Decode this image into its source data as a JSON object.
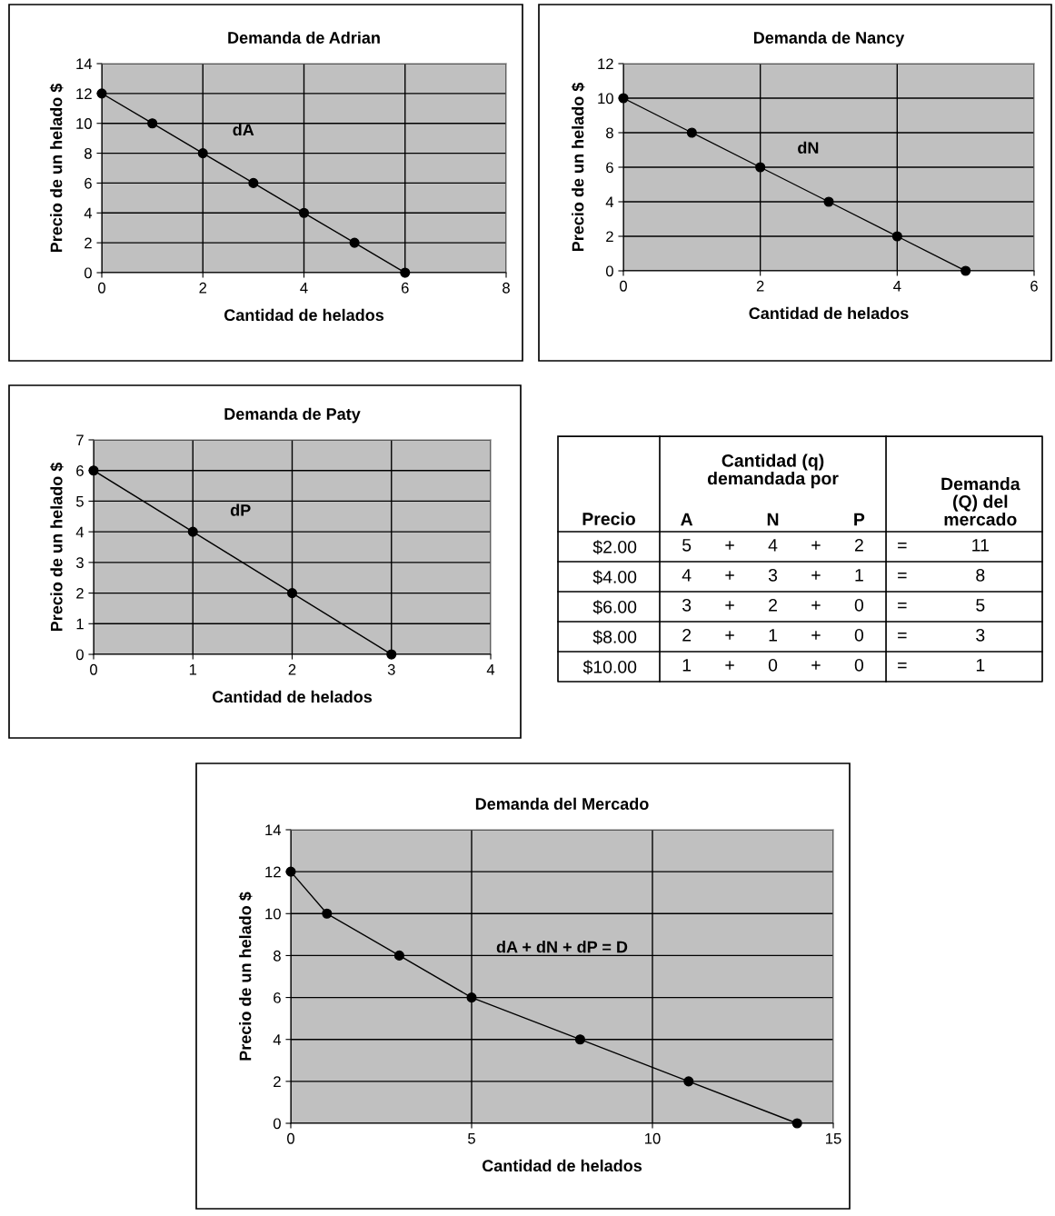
{
  "chart_data": [
    {
      "type": "line",
      "title": "Demanda de Adrian",
      "xlabel": "Cantidad de helados",
      "ylabel": "Precio de un helado $",
      "x": [
        0,
        1,
        2,
        3,
        4,
        5,
        6
      ],
      "series": [
        {
          "color": "#000000",
          "values": [
            12,
            10,
            8,
            6,
            4,
            2,
            0
          ]
        }
      ],
      "xlim": [
        0,
        8
      ],
      "ylim": [
        0,
        14
      ],
      "xticks": [
        0,
        2,
        4,
        6,
        8
      ],
      "yticks": [
        0,
        2,
        4,
        6,
        8,
        10,
        12,
        14
      ],
      "grid": true,
      "marker": "circle",
      "line_style": "solid",
      "annotations": [
        "dA"
      ]
    },
    {
      "type": "line",
      "title": "Demanda de Nancy",
      "xlabel": "Cantidad de helados",
      "ylabel": "Precio de un helado $",
      "x": [
        0,
        1,
        2,
        3,
        4,
        5
      ],
      "series": [
        {
          "color": "#000000",
          "values": [
            10,
            8,
            6,
            4,
            2,
            0
          ]
        }
      ],
      "xlim": [
        0,
        6
      ],
      "ylim": [
        0,
        12
      ],
      "xticks": [
        0,
        2,
        4,
        6
      ],
      "yticks": [
        0,
        2,
        4,
        6,
        8,
        10,
        12
      ],
      "grid": true,
      "marker": "circle",
      "line_style": "solid",
      "annotations": [
        "dN"
      ]
    },
    {
      "type": "line",
      "title": "Demanda de Paty",
      "xlabel": "Cantidad de helados",
      "ylabel": "Precio de un helado $",
      "x": [
        0,
        1,
        2,
        3
      ],
      "series": [
        {
          "color": "#000000",
          "values": [
            6,
            4,
            2,
            0
          ]
        }
      ],
      "xlim": [
        0,
        4
      ],
      "ylim": [
        0,
        7
      ],
      "xticks": [
        0,
        1,
        2,
        3,
        4
      ],
      "yticks": [
        0,
        1,
        2,
        3,
        4,
        5,
        6,
        7
      ],
      "grid": true,
      "marker": "circle",
      "line_style": "solid",
      "annotations": [
        "dP"
      ]
    },
    {
      "type": "heatmap",
      "ylabel": "Precio",
      "categories": [
        "A",
        null,
        "N",
        null,
        "P",
        null,
        "Demanda\n(Q) del\nmercado"
      ],
      "y_categories": [
        "$2.00",
        "$4.00",
        "$6.00",
        "$8.00",
        "$10.00"
      ],
      "color": "#ffffff",
      "data_labels": true,
      "cells": [
        [
          5,
          null,
          4,
          null,
          2,
          null,
          11
        ],
        [
          4,
          null,
          3,
          null,
          1,
          null,
          8
        ],
        [
          3,
          null,
          2,
          null,
          0,
          null,
          5
        ],
        [
          2,
          null,
          1,
          null,
          0,
          null,
          3
        ],
        [
          1,
          null,
          0,
          null,
          0,
          null,
          1
        ]
      ],
      "annotations": [
        "Cantidad (q)\ndemandada por",
        "+",
        "+",
        "=",
        "+",
        "+",
        "=",
        "+",
        "+",
        "=",
        "+",
        "+",
        "=",
        "+",
        "+",
        "="
      ]
    },
    {
      "type": "line",
      "title": "Demanda del Mercado",
      "xlabel": "Cantidad de helados",
      "ylabel": "Precio de un helado $",
      "x": [
        0,
        1,
        3,
        5,
        8,
        11,
        14
      ],
      "series": [
        {
          "color": "#000000",
          "values": [
            12,
            10,
            8,
            6,
            4,
            2,
            0
          ]
        }
      ],
      "xlim": [
        0,
        15
      ],
      "ylim": [
        0,
        14
      ],
      "xticks": [
        0,
        5,
        10,
        15
      ],
      "yticks": [
        0,
        2,
        4,
        6,
        8,
        10,
        12,
        14
      ],
      "grid": true,
      "marker": "circle",
      "line_style": "solid",
      "annotations": [
        "dA + dN + dP = D"
      ]
    }
  ]
}
